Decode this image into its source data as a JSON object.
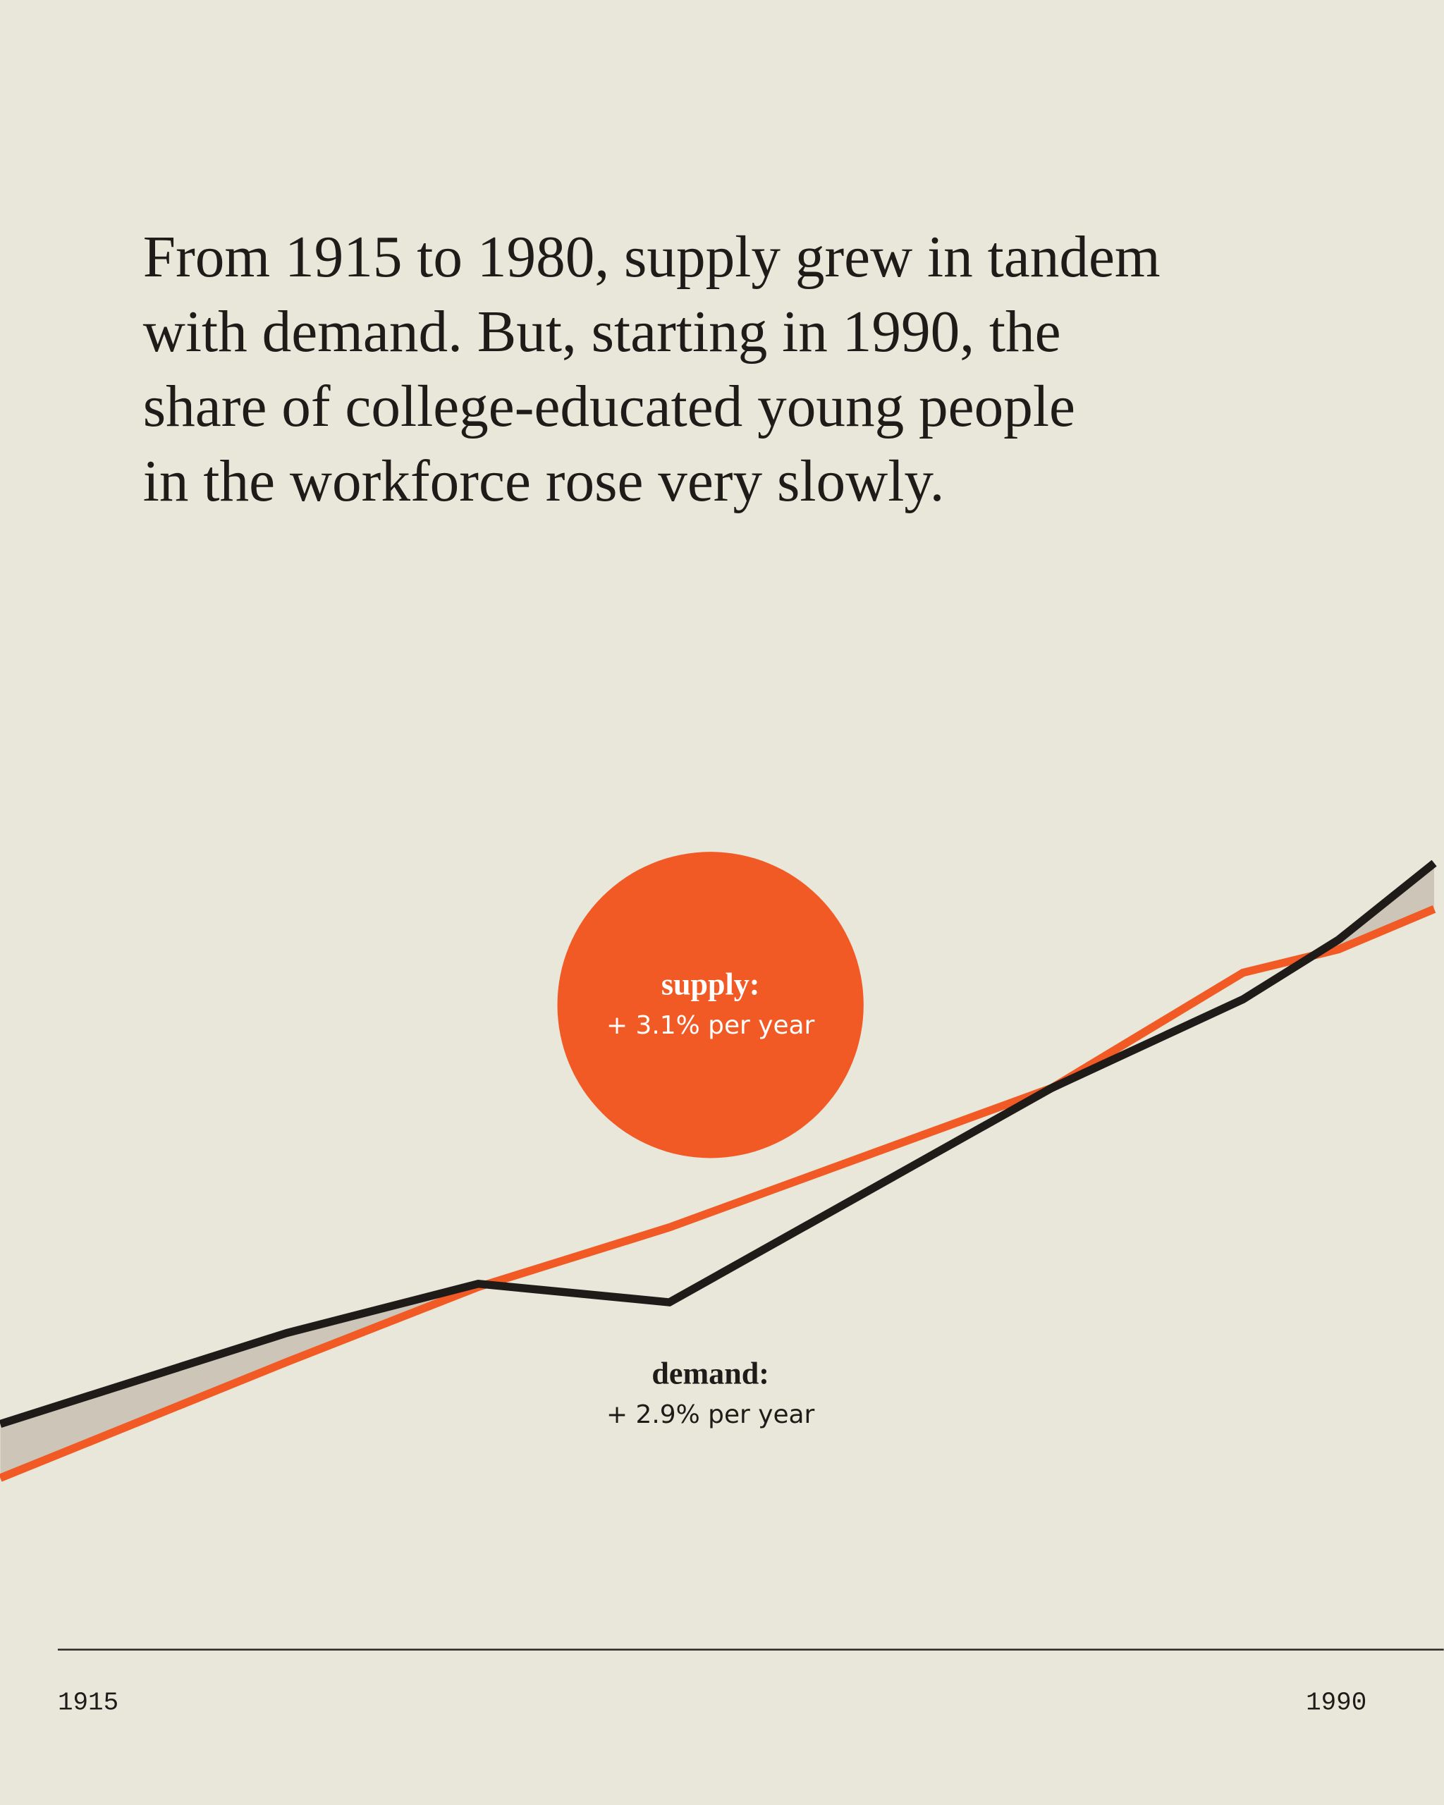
{
  "chart_data": {
    "type": "line",
    "title_lines": [
      "From 1915 to 1980, supply grew in tandem",
      "with demand. But, starting in 1990, the",
      "share of college-educated young people",
      "in the workforce rose very slowly."
    ],
    "x": [
      1915,
      1930,
      1940,
      1950,
      1970,
      1980,
      1985,
      1990
    ],
    "series": [
      {
        "name": "supply",
        "color": "#f15a24",
        "values": [
          21.3,
          35.7,
          45,
          52.4,
          69.7,
          84,
          86.9,
          91.9
        ]
      },
      {
        "name": "demand",
        "color": "#1f1b18",
        "values": [
          28,
          39.3,
          45.4,
          43.1,
          69.7,
          80.7,
          88.1,
          97.6
        ]
      }
    ],
    "annotations": [
      {
        "label": "supply:",
        "text": "+ 3.1% per year"
      },
      {
        "label": "demand:",
        "text": "+ 2.9% per year"
      }
    ],
    "xlim": [
      1915,
      1990.5
    ],
    "xticks": [
      1915,
      1990
    ],
    "ylim": [
      0,
      100
    ],
    "gap_color": "#cdc6b8"
  }
}
